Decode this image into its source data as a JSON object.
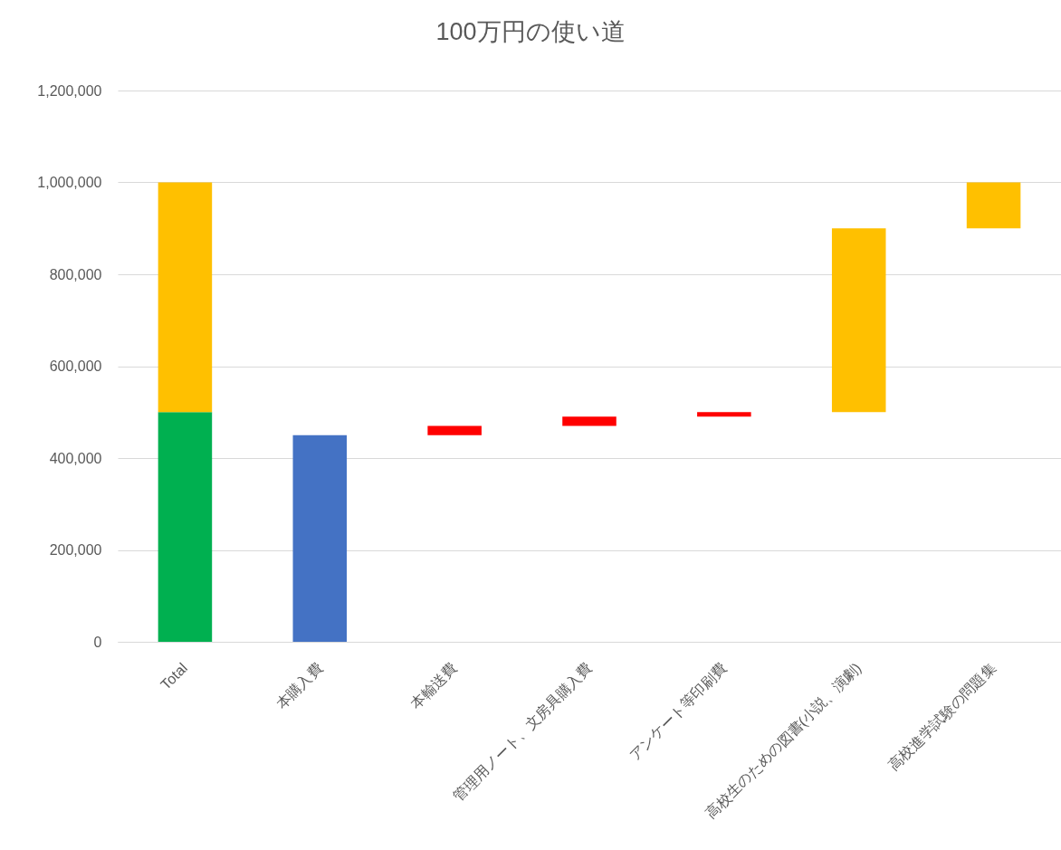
{
  "chart_data": {
    "type": "bar",
    "title": "100万円の使い道",
    "categories": [
      "Total",
      "本購入費",
      "本輸送費",
      "管理用ノート、文房具購入費",
      "アンケート等印刷費",
      "高校生のための図書(小説、演劇)",
      "高校進学試験の問題集"
    ],
    "series": [
      {
        "colors": [
          "#00b050",
          "#4472c4",
          "#ff0000",
          "#ff0000",
          "#ff0000",
          "#ffc000",
          "#ffc000"
        ],
        "values": [
          500000,
          450000,
          20000,
          20000,
          10000,
          400000,
          100000
        ],
        "base": [
          0,
          0,
          450000,
          470000,
          490000,
          500000,
          900000
        ]
      },
      {
        "color": "#ffc000",
        "values": [
          500000,
          null,
          null,
          null,
          null,
          null,
          null
        ],
        "base": [
          500000,
          null,
          null,
          null,
          null,
          null,
          null
        ]
      }
    ],
    "ylim": [
      0,
      1200000
    ],
    "yticks": [
      0,
      {
        "value": 200000,
        "label": "200,000"
      },
      {
        "value": 400000,
        "label": "400,000"
      },
      {
        "value": 600000,
        "label": "600,000"
      },
      {
        "value": 800000,
        "label": "800,000"
      },
      {
        "value": 1000000,
        "label": "1,000,000"
      },
      {
        "value": 1200000,
        "label": "1,200,000"
      }
    ],
    "grid": "y"
  }
}
